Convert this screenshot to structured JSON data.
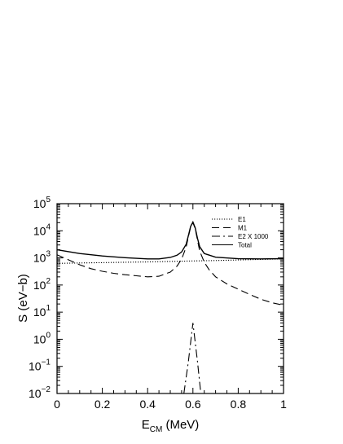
{
  "chart_data": {
    "type": "line",
    "title": "",
    "xlabel": {
      "main": "E",
      "sub": "CM",
      "rest": " (MeV)"
    },
    "ylabel": "S (eV−b)",
    "xlim": [
      0,
      1
    ],
    "ylim": [
      0.01,
      100000
    ],
    "yscale": "log",
    "grid": false,
    "legend_position": "top-right",
    "x_ticks": [
      {
        "value": 0,
        "label": "0"
      },
      {
        "value": 0.2,
        "label": "0.2"
      },
      {
        "value": 0.4,
        "label": "0.4"
      },
      {
        "value": 0.6,
        "label": "0.6"
      },
      {
        "value": 0.8,
        "label": "0.8"
      },
      {
        "value": 1,
        "label": "1"
      }
    ],
    "y_ticks": [
      {
        "value": 0.01,
        "base": "10",
        "exp": "−2"
      },
      {
        "value": 0.1,
        "base": "10",
        "exp": "−1"
      },
      {
        "value": 1,
        "base": "10",
        "exp": "0"
      },
      {
        "value": 10,
        "base": "10",
        "exp": "1"
      },
      {
        "value": 100,
        "base": "10",
        "exp": "2"
      },
      {
        "value": 1000,
        "base": "10",
        "exp": "3"
      },
      {
        "value": 10000,
        "base": "10",
        "exp": "4"
      },
      {
        "value": 100000,
        "base": "10",
        "exp": "5"
      }
    ],
    "series": [
      {
        "name": "E1",
        "dash": "dotted",
        "x": [
          0,
          0.1,
          0.2,
          0.3,
          0.4,
          0.5,
          0.6,
          0.7,
          0.8,
          0.9,
          1.0
        ],
        "y": [
          630,
          650,
          670,
          690,
          710,
          740,
          770,
          800,
          840,
          880,
          920
        ]
      },
      {
        "name": "M1",
        "dash": "dashed",
        "x": [
          0,
          0.05,
          0.1,
          0.15,
          0.2,
          0.25,
          0.3,
          0.35,
          0.4,
          0.45,
          0.5,
          0.53,
          0.55,
          0.57,
          0.58,
          0.59,
          0.6,
          0.61,
          0.62,
          0.63,
          0.65,
          0.67,
          0.7,
          0.75,
          0.8,
          0.85,
          0.9,
          0.95,
          1.0
        ],
        "y": [
          1300,
          850,
          560,
          400,
          320,
          270,
          240,
          220,
          200,
          210,
          300,
          500,
          900,
          2500,
          6000,
          14000,
          20000,
          12000,
          4500,
          1800,
          700,
          380,
          200,
          110,
          70,
          45,
          30,
          22,
          18
        ]
      },
      {
        "name": "E2  X 1000",
        "dash": "dashdot",
        "x": [
          0.56,
          0.58,
          0.6,
          0.62,
          0.635
        ],
        "y": [
          0.01,
          0.15,
          4,
          0.15,
          0.01
        ]
      },
      {
        "name": "Total",
        "dash": "solid",
        "x": [
          0,
          0.1,
          0.2,
          0.3,
          0.4,
          0.45,
          0.5,
          0.53,
          0.55,
          0.57,
          0.58,
          0.59,
          0.6,
          0.61,
          0.62,
          0.63,
          0.65,
          0.7,
          0.8,
          0.9,
          1.0
        ],
        "y": [
          2000,
          1450,
          1180,
          1020,
          920,
          920,
          1040,
          1250,
          1650,
          3200,
          6600,
          14500,
          21000,
          12800,
          5300,
          2600,
          1450,
          1060,
          930,
          920,
          940
        ]
      }
    ]
  }
}
